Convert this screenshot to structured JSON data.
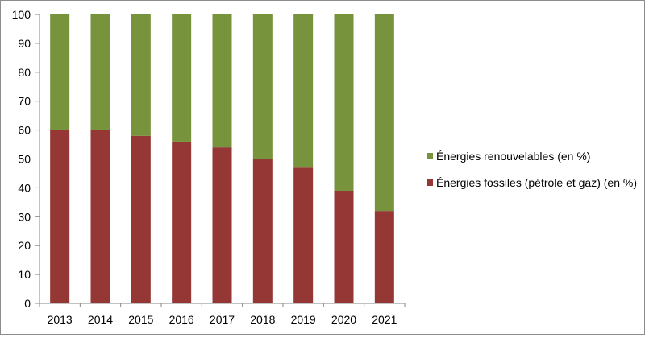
{
  "chart_data": {
    "type": "bar",
    "stacked": true,
    "categories": [
      "2013",
      "2014",
      "2015",
      "2016",
      "2017",
      "2018",
      "2019",
      "2020",
      "2021"
    ],
    "series": [
      {
        "name": "Énergies fossiles (pétrole et gaz) (en %)",
        "color": "#953735",
        "values": [
          60,
          60,
          58,
          56,
          54,
          50,
          47,
          39,
          32
        ]
      },
      {
        "name": "Énergies renouvelables (en %)",
        "color": "#77933c",
        "values": [
          40,
          40,
          42,
          44,
          46,
          50,
          53,
          61,
          68
        ]
      }
    ],
    "title": "",
    "xlabel": "",
    "ylabel": "",
    "ylim": [
      0,
      100
    ],
    "yticks": [
      0,
      10,
      20,
      30,
      40,
      50,
      60,
      70,
      80,
      90,
      100
    ],
    "legend_position": "right",
    "grid": false
  }
}
